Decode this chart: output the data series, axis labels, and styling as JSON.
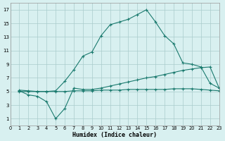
{
  "line1_x": [
    1,
    2,
    3,
    4,
    5,
    6,
    7,
    8,
    9,
    10,
    11,
    12,
    13,
    14,
    15,
    16,
    17,
    18,
    19,
    20,
    21,
    22,
    23
  ],
  "line1_y": [
    5.2,
    5.1,
    5.0,
    5.0,
    5.1,
    6.5,
    8.2,
    10.2,
    10.8,
    13.2,
    14.8,
    15.2,
    15.6,
    16.3,
    17.0,
    15.2,
    13.2,
    12.0,
    9.2,
    9.0,
    8.6,
    6.2,
    5.5
  ],
  "line2_x": [
    1,
    2,
    3,
    4,
    5,
    6,
    7,
    8,
    9,
    10,
    11,
    12,
    13,
    14,
    15,
    16,
    17,
    18,
    19,
    20,
    21,
    22,
    23
  ],
  "line2_y": [
    5.1,
    4.5,
    4.3,
    3.5,
    1.0,
    2.5,
    5.5,
    5.3,
    5.3,
    5.5,
    5.8,
    6.1,
    6.4,
    6.7,
    7.0,
    7.2,
    7.5,
    7.8,
    8.1,
    8.3,
    8.5,
    8.6,
    5.5
  ],
  "line3_x": [
    1,
    2,
    3,
    4,
    5,
    6,
    7,
    8,
    9,
    10,
    11,
    12,
    13,
    14,
    15,
    16,
    17,
    18,
    19,
    20,
    21,
    22,
    23
  ],
  "line3_y": [
    5.0,
    5.0,
    5.0,
    5.0,
    5.0,
    5.0,
    5.1,
    5.1,
    5.1,
    5.2,
    5.2,
    5.2,
    5.3,
    5.3,
    5.3,
    5.3,
    5.3,
    5.4,
    5.4,
    5.4,
    5.3,
    5.2,
    5.1
  ],
  "color": "#1a7a6e",
  "bg_color": "#d8f0f0",
  "grid_color": "#aacccc",
  "xlabel": "Humidex (Indice chaleur)",
  "xlim": [
    0,
    23
  ],
  "ylim": [
    0,
    18
  ],
  "xticks": [
    0,
    1,
    2,
    3,
    4,
    5,
    6,
    7,
    8,
    9,
    10,
    11,
    12,
    13,
    14,
    15,
    16,
    17,
    18,
    19,
    20,
    21,
    22,
    23
  ],
  "yticks": [
    1,
    3,
    5,
    7,
    9,
    11,
    13,
    15,
    17
  ],
  "figsize": [
    3.2,
    2.0
  ],
  "dpi": 100
}
